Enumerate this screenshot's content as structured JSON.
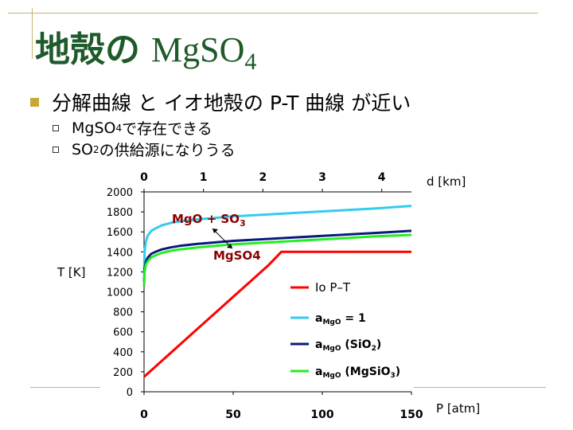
{
  "slide": {
    "title_jp": "地殻の",
    "title_formula": "MgSO",
    "title_formula_sub": "4",
    "bullet_main": "分解曲線 と イオ地殻の P-T 曲線 が近い",
    "sub_bullets": [
      {
        "prefix": "MgSO",
        "sub": "4",
        "suffix": "で存在できる"
      },
      {
        "prefix": "SO",
        "sub": "2",
        "suffix": " の供給源になりうる"
      }
    ],
    "colors": {
      "title": "#1e5a2a",
      "bullet": "#c8a832",
      "decoration": "#c8b46a"
    }
  },
  "chart_data": {
    "type": "line",
    "xlabel": "P [atm]",
    "ylabel": "T  [K]",
    "x2label": "d [km]",
    "xlim": [
      0,
      150
    ],
    "ylim": [
      0,
      2000
    ],
    "x2lim": [
      0,
      4.5
    ],
    "xticks": [
      0,
      50,
      100,
      150
    ],
    "yticks": [
      0,
      200,
      400,
      600,
      800,
      1000,
      1200,
      1400,
      1600,
      1800,
      2000
    ],
    "x2ticks": [
      0,
      1,
      2,
      3,
      4
    ],
    "series": [
      {
        "name": "Io P–T",
        "color": "#ff0000",
        "x": [
          0,
          10,
          20,
          30,
          40,
          50,
          60,
          70,
          77,
          80,
          100,
          120,
          150
        ],
        "y": [
          150,
          310,
          470,
          630,
          790,
          950,
          1110,
          1270,
          1400,
          1400,
          1400,
          1400,
          1400
        ]
      },
      {
        "name": "aMgO = 1",
        "legend_main": "a",
        "legend_sub": "MgO",
        "legend_rest": " = 1",
        "color": "#33ccee",
        "x": [
          0,
          0.3,
          1,
          2,
          4,
          7,
          10,
          15,
          20,
          30,
          40,
          50,
          70,
          90,
          110,
          130,
          150
        ],
        "y": [
          1180,
          1400,
          1500,
          1560,
          1610,
          1640,
          1665,
          1690,
          1705,
          1725,
          1740,
          1755,
          1775,
          1795,
          1815,
          1835,
          1860
        ]
      },
      {
        "name": "aMgO (SiO2)",
        "legend_main": "a",
        "legend_sub": "MgO",
        "legend_rest": " (SiO",
        "legend_sub2": "2",
        "legend_end": ")",
        "color": "#0a1a7a",
        "x": [
          0,
          0.3,
          1,
          2,
          4,
          7,
          10,
          15,
          20,
          30,
          40,
          50,
          70,
          90,
          110,
          130,
          150
        ],
        "y": [
          1100,
          1230,
          1300,
          1340,
          1380,
          1405,
          1425,
          1445,
          1460,
          1480,
          1495,
          1510,
          1530,
          1550,
          1570,
          1590,
          1610
        ]
      },
      {
        "name": "aMgO (MgSiO3)",
        "legend_main": "a",
        "legend_sub": "MgO",
        "legend_rest": " (MgSiO",
        "legend_sub2": "3",
        "legend_end": ")",
        "color": "#22ee22",
        "x": [
          0,
          0.3,
          1,
          2,
          4,
          7,
          10,
          15,
          20,
          30,
          40,
          50,
          70,
          90,
          110,
          130,
          150
        ],
        "y": [
          1060,
          1200,
          1270,
          1305,
          1345,
          1370,
          1390,
          1410,
          1425,
          1445,
          1460,
          1475,
          1495,
          1515,
          1535,
          1555,
          1570
        ]
      }
    ],
    "annotations": {
      "upper_main": "MgO + SO",
      "upper_sub": "3",
      "lower": "MgSO4",
      "color": "#8b0000"
    }
  }
}
